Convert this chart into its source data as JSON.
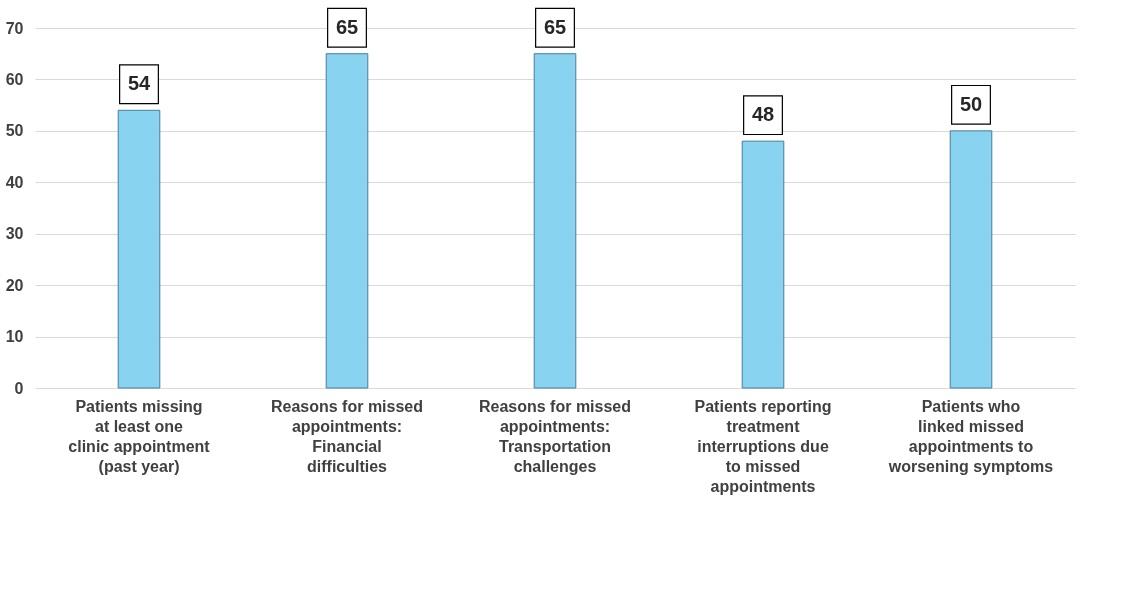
{
  "chart_data": {
    "type": "bar",
    "categories": [
      "Patients missing at least one clinic appointment (past year)",
      "Reasons for missed appointments: Financial difficulties",
      "Reasons for missed appointments: Transportation challenges",
      "Patients reporting treatment interruptions due to missed appointments",
      "Patients who linked missed appointments to worsening symptoms"
    ],
    "values": [
      54,
      65,
      65,
      48,
      50
    ],
    "color": "#87d3f0",
    "ylim": [
      0,
      70
    ],
    "yticks": [
      0,
      10,
      20,
      30,
      40,
      50,
      60,
      70
    ],
    "grid": "y",
    "data_labels": true
  }
}
